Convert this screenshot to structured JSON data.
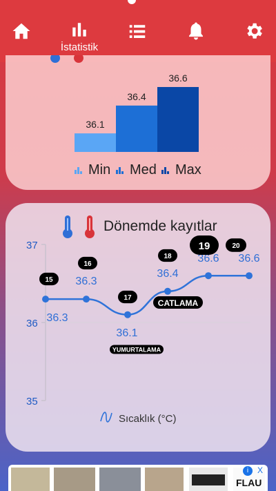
{
  "nav": {
    "items": [
      {
        "icon": "home-icon"
      },
      {
        "icon": "bar-chart-icon",
        "label": "İstatistik"
      },
      {
        "icon": "list-icon"
      },
      {
        "icon": "bell-icon"
      },
      {
        "icon": "gear-icon"
      }
    ],
    "active": 1,
    "color": "#dd3a3f"
  },
  "summary": {
    "chart_data": {
      "type": "bar",
      "categories": [
        "Min",
        "Med",
        "Max"
      ],
      "values": [
        36.1,
        36.4,
        36.6
      ],
      "colors": [
        "#5aa6f5",
        "#1d6fd6",
        "#0a47a6"
      ]
    },
    "legend": [
      "Min",
      "Med",
      "Max"
    ]
  },
  "records": {
    "title": "Dönemde kayıtlar",
    "chart_data": {
      "type": "line",
      "x": [
        15,
        16,
        17,
        18,
        19,
        20
      ],
      "values": [
        36.3,
        36.3,
        36.1,
        36.4,
        36.6,
        36.6
      ],
      "ylim": [
        35,
        37
      ],
      "yticks": [
        "37",
        "36",
        "35"
      ],
      "day_labels": [
        "15",
        "16",
        "17",
        "18",
        "19",
        "20"
      ],
      "value_labels": [
        "36.3",
        "36.3",
        "36.1",
        "36.4",
        "36.6",
        "36.6"
      ],
      "annotations": [
        "YUMURTALAMA",
        "CATLAMA"
      ],
      "legend": "Sıcaklık (°C)",
      "color": "#2f73d9"
    }
  },
  "ad": {
    "info_label": "i",
    "close_label": "X",
    "brand": "FLAU"
  }
}
